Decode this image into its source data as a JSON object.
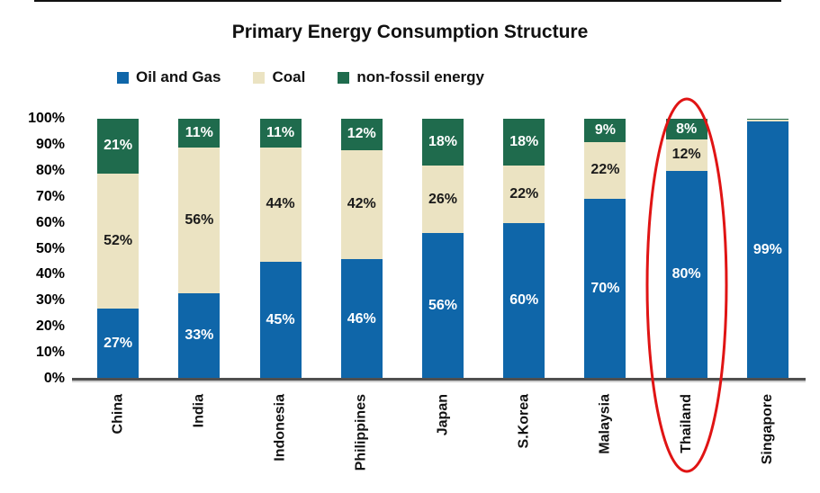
{
  "chart_data": {
    "type": "bar",
    "variant": "stacked-percent",
    "title": "Primary Energy Consumption Structure",
    "legend_position": "top",
    "grid": false,
    "ylim": [
      0,
      100
    ],
    "y_ticks": [
      "100%",
      "90%",
      "80%",
      "70%",
      "60%",
      "50%",
      "40%",
      "30%",
      "20%",
      "10%",
      "0%"
    ],
    "categories": [
      "China",
      "India",
      "Indonesia",
      "Philippines",
      "Japan",
      "S.Korea",
      "Malaysia",
      "Thailand",
      "Singapore"
    ],
    "series": [
      {
        "name": "Oil and Gas",
        "color": "#0f66a9",
        "label_color": "#ffffff",
        "values": [
          27,
          33,
          45,
          46,
          56,
          60,
          70,
          80,
          99
        ],
        "labels": [
          "27%",
          "33%",
          "45%",
          "46%",
          "56%",
          "60%",
          "70%",
          "80%",
          "99%"
        ]
      },
      {
        "name": "Coal",
        "color": "#ebe3c2",
        "label_color": "#1a1a1a",
        "values": [
          52,
          56,
          44,
          42,
          26,
          22,
          22,
          12,
          0.5
        ],
        "labels": [
          "52%",
          "56%",
          "44%",
          "42%",
          "26%",
          "22%",
          "22%",
          "12%",
          ""
        ]
      },
      {
        "name": "non-fossil energy",
        "color": "#1f6b4d",
        "label_color": "#ffffff",
        "values": [
          21,
          11,
          11,
          12,
          18,
          18,
          9,
          8,
          0.5
        ],
        "labels": [
          "21%",
          "11%",
          "11%",
          "12%",
          "18%",
          "18%",
          "9%",
          "8%",
          ""
        ]
      }
    ],
    "highlight": {
      "category": "Thailand",
      "shape": "ellipse",
      "color": "#e01414"
    }
  }
}
